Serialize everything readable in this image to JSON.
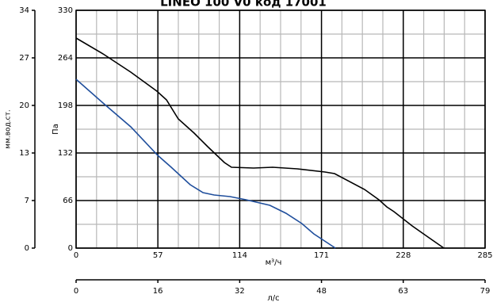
{
  "chart_data": {
    "type": "line",
    "title": "LINEO 100 V0 код 17001",
    "xlabel": "м³/ч",
    "ylabel": "Па",
    "y2label": "мм.вод.ст.",
    "x2label": "л/с",
    "xlim": [
      0,
      285
    ],
    "xticks": [
      0,
      57,
      114,
      171,
      228,
      285
    ],
    "ylim": [
      0,
      330
    ],
    "yticks": [
      0,
      66,
      132,
      198,
      264,
      330
    ],
    "y2lim": [
      0,
      33.65
    ],
    "y2ticks": [
      0,
      {
        "value": 6.73,
        "label": "7"
      },
      {
        "value": 13.46,
        "label": "13"
      },
      {
        "value": 20.19,
        "label": "20"
      },
      {
        "value": 26.92,
        "label": "27"
      },
      {
        "value": 33.65,
        "label": "34"
      }
    ],
    "x2lim": [
      0,
      79.17
    ],
    "x2ticks": [
      0,
      {
        "value": 15.83,
        "label": "16"
      },
      {
        "value": 31.67,
        "label": "32"
      },
      {
        "value": 47.5,
        "label": "48"
      },
      {
        "value": 63.33,
        "label": "63"
      },
      {
        "value": 79.17,
        "label": "79"
      }
    ],
    "grid": true,
    "series": [
      {
        "color": "#000000",
        "x": [
          0,
          18.8,
          38.1,
          56.3,
          63.0,
          71.2,
          82.3,
          91.7,
          103.3,
          108.3,
          123.7,
          137.0,
          154.1,
          173.4,
          180.1,
          201.0,
          211.0,
          216.5,
          221.5,
          234.2,
          245.2,
          256.3
        ],
        "values": [
          291.5,
          269.5,
          244.2,
          217.8,
          205.7,
          179.3,
          159.5,
          140.8,
          118.8,
          112.2,
          111.1,
          112.2,
          110,
          105.6,
          103.4,
          81.4,
          67.1,
          57.2,
          50.6,
          30.8,
          15.4,
          0
        ]
      },
      {
        "color": "#1f4e9c",
        "x": [
          0,
          18.8,
          38.1,
          56.9,
          66.3,
          79.5,
          88.4,
          96.2,
          107.2,
          118.4,
          135,
          146.2,
          157.3,
          165.6,
          174,
          180.7
        ],
        "values": [
          234.3,
          201.3,
          168.3,
          128.7,
          112.2,
          88,
          77,
          73.7,
          71.5,
          67.1,
          59.4,
          48.4,
          34.1,
          19.8,
          8.8,
          0
        ]
      }
    ]
  }
}
